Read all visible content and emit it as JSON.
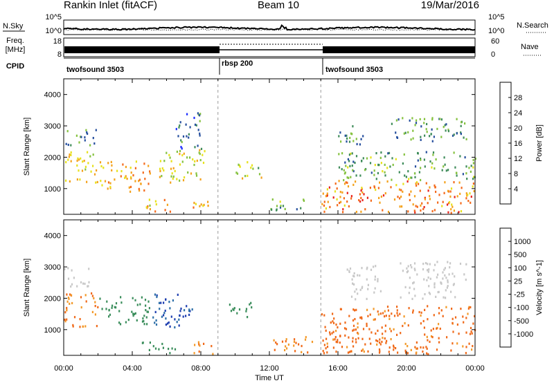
{
  "header": {
    "station": "Rankin Inlet (fitACF)",
    "beam": "Beam 10",
    "date": "19/Mar/2016"
  },
  "strip": {
    "nsky_label": "N.Sky",
    "nsearch_label": "N.Search",
    "noise_ticks_left": [
      "10^5",
      "10^0"
    ],
    "noise_ticks_right": [
      "10^5",
      "10^0"
    ],
    "freq_label": "Freq.",
    "freq_unit": "[MHz]",
    "freq_ticks": [
      "18",
      "8"
    ],
    "nave_label": "Nave",
    "nave_ticks": [
      "60",
      "0"
    ],
    "cpid_label": "CPID",
    "cpid_segments": [
      {
        "name": "twofsound 3503",
        "start_hour": 0,
        "end_hour": 9
      },
      {
        "name": "rbsp 200",
        "start_hour": 9,
        "end_hour": 15
      },
      {
        "name": "twofsound 3503",
        "start_hour": 15,
        "end_hour": 24
      }
    ]
  },
  "chart_data": [
    {
      "type": "heatmap",
      "title": "",
      "xlabel": "Time UT",
      "ylabel": "Slant Range [km]",
      "xlim": [
        0,
        24
      ],
      "ylim": [
        180,
        4500
      ],
      "x_ticks": [
        "00:00",
        "04:00",
        "08:00",
        "12:00",
        "16:00",
        "20:00",
        "00:00"
      ],
      "y_ticks": [
        1000,
        2000,
        3000,
        4000
      ],
      "colorbar": {
        "label": "Power [dB]",
        "ticks": [
          4,
          8,
          12,
          16,
          20,
          24,
          28
        ],
        "range": [
          0,
          32
        ],
        "colors": [
          "#1a2bff",
          "#27509e",
          "#3f8c5a",
          "#86c240",
          "#e7e21d",
          "#f4a21c",
          "#f46a1c",
          "#e8231c"
        ]
      },
      "regions": [
        {
          "t": [
            0.0,
            1.8
          ],
          "r": [
            1200,
            2200
          ],
          "level": 18
        },
        {
          "t": [
            1.8,
            5.0
          ],
          "r": [
            900,
            1900
          ],
          "level": 22
        },
        {
          "t": [
            0.0,
            2.0
          ],
          "r": [
            2400,
            2900
          ],
          "level": 10
        },
        {
          "t": [
            4.5,
            6.2
          ],
          "r": [
            250,
            700
          ],
          "level": 20
        },
        {
          "t": [
            5.5,
            8.2
          ],
          "r": [
            1200,
            2300
          ],
          "level": 18
        },
        {
          "t": [
            6.5,
            8.0
          ],
          "r": [
            2300,
            3500
          ],
          "level": 8
        },
        {
          "t": [
            7.5,
            8.8
          ],
          "r": [
            250,
            650
          ],
          "level": 20
        },
        {
          "t": [
            10.0,
            11.5
          ],
          "r": [
            1300,
            1900
          ],
          "level": 16
        },
        {
          "t": [
            12.0,
            14.0
          ],
          "r": [
            250,
            700
          ],
          "level": 12
        },
        {
          "t": [
            15.0,
            24.0
          ],
          "r": [
            250,
            1300
          ],
          "level": 24
        },
        {
          "t": [
            16.0,
            24.0
          ],
          "r": [
            1300,
            2200
          ],
          "level": 12
        },
        {
          "t": [
            16.0,
            17.5
          ],
          "r": [
            2400,
            3100
          ],
          "level": 10
        },
        {
          "t": [
            19.0,
            23.5
          ],
          "r": [
            2500,
            3300
          ],
          "level": 10
        }
      ]
    },
    {
      "type": "heatmap",
      "title": "",
      "xlabel": "Time UT",
      "ylabel": "Slant Range [km]",
      "xlim": [
        0,
        24
      ],
      "ylim": [
        180,
        4500
      ],
      "x_ticks": [
        "00:00",
        "04:00",
        "08:00",
        "12:00",
        "16:00",
        "20:00",
        "00:00"
      ],
      "y_ticks": [
        1000,
        2000,
        3000,
        4000
      ],
      "colorbar": {
        "label": "Velocity [m s^-1]",
        "ticks": [
          "1000",
          "500",
          "100",
          "25",
          "-25",
          "-100",
          "-500",
          "-1000"
        ],
        "colors": [
          "#1e3fb0",
          "#2d6fa8",
          "#3b8e5c",
          "#6fc04a",
          "#c8c8c8",
          "#f5c56a",
          "#f39a2a",
          "#f06a1a",
          "#e8201c"
        ]
      },
      "regions": [
        {
          "t": [
            0.0,
            2.0
          ],
          "r": [
            1100,
            2200
          ],
          "level": -300
        },
        {
          "t": [
            0.0,
            1.5
          ],
          "r": [
            2400,
            3000
          ],
          "level": 0
        },
        {
          "t": [
            2.0,
            5.0
          ],
          "r": [
            1200,
            2100
          ],
          "level": 200
        },
        {
          "t": [
            5.0,
            7.5
          ],
          "r": [
            1100,
            2200
          ],
          "level": 800
        },
        {
          "t": [
            4.5,
            6.5
          ],
          "r": [
            250,
            650
          ],
          "level": 120
        },
        {
          "t": [
            7.5,
            8.8
          ],
          "r": [
            250,
            650
          ],
          "level": -300
        },
        {
          "t": [
            9.5,
            11.0
          ],
          "r": [
            1400,
            1900
          ],
          "level": 200
        },
        {
          "t": [
            12.0,
            14.5
          ],
          "r": [
            250,
            800
          ],
          "level": -300
        },
        {
          "t": [
            15.0,
            24.0
          ],
          "r": [
            250,
            1800
          ],
          "level": -400
        },
        {
          "t": [
            16.5,
            18.5
          ],
          "r": [
            2000,
            3100
          ],
          "level": 0
        },
        {
          "t": [
            19.5,
            23.5
          ],
          "r": [
            2000,
            3200
          ],
          "level": 0
        }
      ]
    }
  ]
}
